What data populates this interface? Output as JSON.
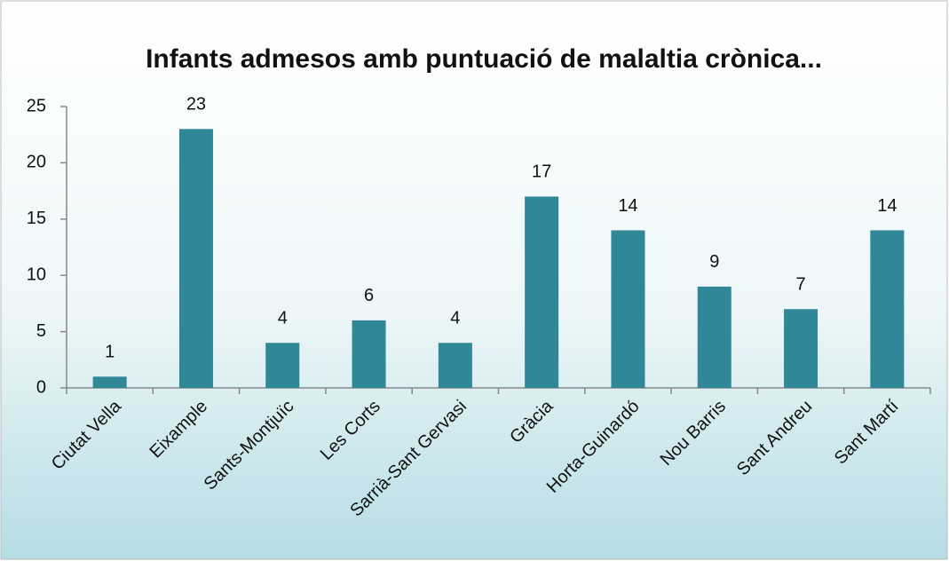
{
  "chart_data": {
    "type": "bar",
    "title": "Infants admesos amb puntuació de malaltia crònica...",
    "categories": [
      "Ciutat Vella",
      "Eixample",
      "Sants-Montjuïc",
      "Les Corts",
      "Sarrià-Sant Gervasi",
      "Gràcia",
      "Horta-Guinardó",
      "Nou Barris",
      "Sant Andreu",
      "Sant Martí"
    ],
    "values": [
      1,
      23,
      4,
      6,
      4,
      17,
      14,
      9,
      7,
      14
    ],
    "color": "#2f8797",
    "ylim": [
      0,
      25
    ],
    "yticks": [
      0,
      5,
      10,
      15,
      20,
      25
    ],
    "grid": false
  }
}
